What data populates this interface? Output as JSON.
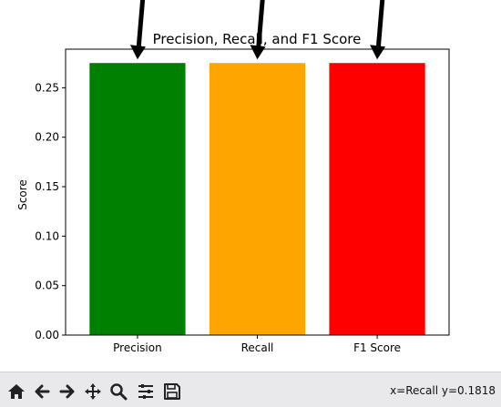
{
  "chart_data": {
    "type": "bar",
    "title": "Precision, Recall, and F1 Score",
    "xlabel": "",
    "ylabel": "Score",
    "categories": [
      "Precision",
      "Recall",
      "F1 Score"
    ],
    "values": [
      0.275,
      0.275,
      0.275
    ],
    "colors": [
      "#008000",
      "#ffa500",
      "#ff0000"
    ],
    "ylim": [
      0,
      0.289
    ],
    "yticks": [
      "0.00",
      "0.05",
      "0.10",
      "0.15",
      "0.20",
      "0.25"
    ],
    "ytick_values": [
      0,
      0.05,
      0.1,
      0.15,
      0.2,
      0.25
    ],
    "grid": false,
    "annotations": [
      "arrow pointing to top of Precision bar",
      "arrow pointing to top of Recall bar",
      "arrow pointing to top of F1 Score bar"
    ]
  },
  "toolbar": {
    "buttons": [
      {
        "name": "home-icon",
        "title": "Home"
      },
      {
        "name": "back-icon",
        "title": "Back"
      },
      {
        "name": "forward-icon",
        "title": "Forward"
      },
      {
        "name": "pan-icon",
        "title": "Pan"
      },
      {
        "name": "zoom-icon",
        "title": "Zoom"
      },
      {
        "name": "configure-subplots-icon",
        "title": "Configure subplots"
      },
      {
        "name": "save-icon",
        "title": "Save"
      }
    ],
    "coords": "x=Recall y=0.1818"
  }
}
